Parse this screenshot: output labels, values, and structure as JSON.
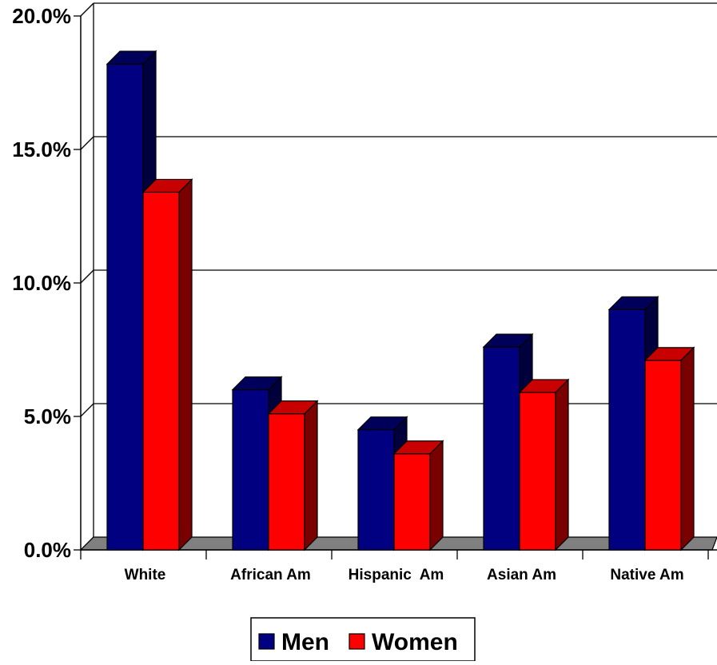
{
  "chart_data": {
    "type": "bar",
    "title": "",
    "xlabel": "",
    "ylabel": "",
    "categories": [
      "White",
      "African Am",
      "Hispanic  Am",
      "Asian Am",
      "Native Am"
    ],
    "series": [
      {
        "name": "Men",
        "values": [
          18.2,
          6.0,
          4.5,
          7.6,
          9.0
        ],
        "color": "#000080",
        "side_color": "#00003c",
        "top_color": "#00005a"
      },
      {
        "name": "Women",
        "values": [
          13.4,
          5.1,
          3.6,
          5.9,
          7.1
        ],
        "color": "#ff0000",
        "side_color": "#7a0000",
        "top_color": "#c80000"
      }
    ],
    "ylim": [
      0,
      20
    ],
    "yticks": [
      {
        "value": 0,
        "label": "0.0%"
      },
      {
        "value": 5,
        "label": "5.0%"
      },
      {
        "value": 10,
        "label": "10.0%"
      },
      {
        "value": 15,
        "label": "15.0%"
      },
      {
        "value": 20,
        "label": "20.0%"
      }
    ],
    "grid": true,
    "legend_position": "bottom",
    "floor_color": "#808080"
  }
}
